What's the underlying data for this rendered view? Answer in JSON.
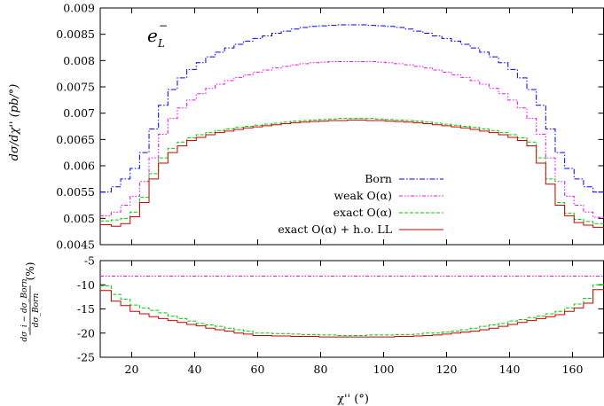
{
  "chart_data": [
    {
      "type": "line",
      "panel": "top",
      "title": "",
      "annotation": "e_L^-",
      "xlabel": "",
      "ylabel": "dσ/dχ'' (pb/°)",
      "xlim": [
        10,
        170
      ],
      "ylim": [
        0.0045,
        0.009
      ],
      "yticks": [
        "0.0045",
        "0.005",
        "0.0055",
        "0.006",
        "0.0065",
        "0.007",
        "0.0075",
        "0.008",
        "0.0085",
        "0.009"
      ],
      "legend_position": "center-right",
      "x": [
        12,
        15,
        18,
        21,
        24,
        27,
        30,
        33,
        36,
        39,
        42,
        45,
        48,
        51,
        54,
        57,
        60,
        63,
        66,
        69,
        72,
        75,
        78,
        81,
        84,
        87,
        90,
        93,
        96,
        99,
        102,
        105,
        108,
        111,
        114,
        117,
        120,
        123,
        126,
        129,
        132,
        135,
        138,
        141,
        144,
        147,
        150,
        153,
        156,
        159,
        162,
        165,
        168
      ],
      "series": [
        {
          "name": "Born",
          "color": "#0000ff",
          "dash": "dash-dot",
          "values": [
            0.0055,
            0.0056,
            0.00575,
            0.00595,
            0.00625,
            0.0067,
            0.00715,
            0.00745,
            0.00767,
            0.00783,
            0.00796,
            0.00807,
            0.00816,
            0.00824,
            0.00831,
            0.00837,
            0.00842,
            0.00847,
            0.00852,
            0.00856,
            0.0086,
            0.00863,
            0.00865,
            0.00866,
            0.00867,
            0.00868,
            0.00868,
            0.00868,
            0.00867,
            0.00866,
            0.00865,
            0.00863,
            0.0086,
            0.00856,
            0.00852,
            0.00847,
            0.00842,
            0.00837,
            0.00831,
            0.00824,
            0.00816,
            0.00807,
            0.00796,
            0.00783,
            0.00767,
            0.00745,
            0.00715,
            0.0067,
            0.00625,
            0.00595,
            0.00575,
            0.0056,
            0.0055
          ]
        },
        {
          "name": "weak O(α)",
          "color": "#ff00ff",
          "dash": "dash-dot-dot",
          "values": [
            0.00505,
            0.00512,
            0.00525,
            0.00542,
            0.0057,
            0.00615,
            0.0066,
            0.0069,
            0.0071,
            0.00725,
            0.00737,
            0.00747,
            0.00755,
            0.00762,
            0.00768,
            0.00773,
            0.00778,
            0.00782,
            0.00786,
            0.00789,
            0.00792,
            0.00794,
            0.00796,
            0.00797,
            0.00798,
            0.00798,
            0.00798,
            0.00798,
            0.00798,
            0.00797,
            0.00796,
            0.00794,
            0.00792,
            0.00789,
            0.00786,
            0.00782,
            0.00778,
            0.00773,
            0.00768,
            0.00762,
            0.00755,
            0.00747,
            0.00737,
            0.00725,
            0.0071,
            0.0069,
            0.0066,
            0.00615,
            0.0057,
            0.00542,
            0.00525,
            0.00512,
            0.00502
          ]
        },
        {
          "name": "exact O(α)",
          "color": "#00cc00",
          "dash": "dashed",
          "values": [
            0.00495,
            0.00497,
            0.005,
            0.00512,
            0.0054,
            0.00585,
            0.00615,
            0.00633,
            0.00645,
            0.00653,
            0.00659,
            0.00663,
            0.00667,
            0.0067,
            0.00673,
            0.00675,
            0.00677,
            0.00679,
            0.00681,
            0.00683,
            0.00685,
            0.00686,
            0.00687,
            0.00688,
            0.00689,
            0.0069,
            0.0069,
            0.0069,
            0.0069,
            0.00689,
            0.00688,
            0.00687,
            0.00686,
            0.00685,
            0.00683,
            0.00681,
            0.00679,
            0.00677,
            0.00675,
            0.00673,
            0.0067,
            0.00667,
            0.00663,
            0.00659,
            0.00653,
            0.00645,
            0.00615,
            0.00575,
            0.0053,
            0.0051,
            0.00498,
            0.00494,
            0.0049
          ]
        },
        {
          "name": "exact O(α) + h.o. LL",
          "color": "#cc0000",
          "dash": "solid",
          "values": [
            0.00488,
            0.00485,
            0.0049,
            0.00503,
            0.0053,
            0.00575,
            0.00605,
            0.00625,
            0.00638,
            0.00648,
            0.00654,
            0.00659,
            0.00663,
            0.00666,
            0.00669,
            0.00672,
            0.00674,
            0.00676,
            0.00678,
            0.0068,
            0.00682,
            0.00683,
            0.00684,
            0.00685,
            0.00686,
            0.00686,
            0.00687,
            0.00687,
            0.00686,
            0.00686,
            0.00685,
            0.00684,
            0.00683,
            0.00682,
            0.0068,
            0.00678,
            0.00676,
            0.00674,
            0.00672,
            0.00669,
            0.00666,
            0.00663,
            0.00659,
            0.00654,
            0.00648,
            0.00638,
            0.00605,
            0.00565,
            0.00525,
            0.00505,
            0.00492,
            0.00487,
            0.00483
          ]
        }
      ]
    },
    {
      "type": "line",
      "panel": "bottom",
      "xlabel": "χ'' (°)",
      "ylabel": "(dσ_i − dσ_Born) / dσ_Born (%)",
      "xlim": [
        10,
        170
      ],
      "ylim": [
        -25,
        -5
      ],
      "xticks": [
        "20",
        "40",
        "60",
        "80",
        "100",
        "120",
        "140",
        "160"
      ],
      "yticks": [
        "-25",
        "-20",
        "-15",
        "-10",
        "-5"
      ],
      "x": [
        12,
        15,
        18,
        21,
        24,
        27,
        30,
        33,
        36,
        39,
        42,
        45,
        48,
        51,
        54,
        57,
        60,
        63,
        66,
        69,
        72,
        75,
        78,
        81,
        84,
        87,
        90,
        93,
        96,
        99,
        102,
        105,
        108,
        111,
        114,
        117,
        120,
        123,
        126,
        129,
        132,
        135,
        138,
        141,
        144,
        147,
        150,
        153,
        156,
        159,
        162,
        165,
        168
      ],
      "series": [
        {
          "name": "weak O(α)",
          "color": "#ff00ff",
          "dash": "dash-dot-dot",
          "values": [
            -8.2,
            -8.2,
            -8.2,
            -8.2,
            -8.2,
            -8.2,
            -8.2,
            -8.2,
            -8.2,
            -8.2,
            -8.2,
            -8.2,
            -8.2,
            -8.2,
            -8.2,
            -8.2,
            -8.2,
            -8.2,
            -8.2,
            -8.2,
            -8.2,
            -8.2,
            -8.2,
            -8.2,
            -8.2,
            -8.2,
            -8.2,
            -8.2,
            -8.2,
            -8.2,
            -8.2,
            -8.2,
            -8.2,
            -8.2,
            -8.2,
            -8.2,
            -8.2,
            -8.2,
            -8.2,
            -8.2,
            -8.2,
            -8.2,
            -8.2,
            -8.2,
            -8.2,
            -8.2,
            -8.2,
            -8.2,
            -8.2,
            -8.2,
            -8.2,
            -8.2,
            -8.2
          ]
        },
        {
          "name": "exact O(α)",
          "color": "#00cc00",
          "dash": "dashed",
          "values": [
            -10.2,
            -12.0,
            -13.0,
            -14.2,
            -14.8,
            -15.3,
            -15.8,
            -16.5,
            -17.0,
            -17.5,
            -18.0,
            -18.3,
            -18.6,
            -19.0,
            -19.3,
            -19.6,
            -20.0,
            -20.0,
            -20.1,
            -20.1,
            -20.2,
            -20.3,
            -20.3,
            -20.4,
            -20.4,
            -20.5,
            -20.5,
            -20.5,
            -20.4,
            -20.4,
            -20.4,
            -20.3,
            -20.3,
            -20.2,
            -20.0,
            -20.0,
            -19.8,
            -19.6,
            -19.3,
            -19.0,
            -18.6,
            -18.3,
            -18.0,
            -17.5,
            -17.2,
            -16.8,
            -16.5,
            -16.0,
            -15.5,
            -14.8,
            -14.0,
            -12.8,
            -10.0
          ]
        },
        {
          "name": "exact O(α) + h.o. LL",
          "color": "#cc0000",
          "dash": "solid",
          "values": [
            -11.2,
            -13.4,
            -14.3,
            -15.5,
            -16.0,
            -16.6,
            -17.0,
            -17.4,
            -17.8,
            -18.2,
            -18.5,
            -19.0,
            -19.3,
            -19.6,
            -20.0,
            -20.2,
            -20.5,
            -20.5,
            -20.6,
            -20.6,
            -20.7,
            -20.7,
            -20.7,
            -20.8,
            -20.8,
            -20.8,
            -20.8,
            -20.8,
            -20.8,
            -20.8,
            -20.8,
            -20.7,
            -20.7,
            -20.6,
            -20.5,
            -20.4,
            -20.2,
            -20.0,
            -19.8,
            -19.6,
            -19.3,
            -19.0,
            -18.6,
            -18.2,
            -17.8,
            -17.4,
            -17.0,
            -16.6,
            -16.2,
            -15.5,
            -14.8,
            -13.8,
            -11.0
          ]
        }
      ]
    }
  ],
  "labels": {
    "annotation_base": "e",
    "annotation_sub": "L",
    "annotation_sup": "−",
    "top_ylabel": "dσ/dχ'' (pb/°)",
    "bottom_ylabel_num": "dσ_i − dσ_Born",
    "bottom_ylabel_den": "dσ_Born",
    "bottom_ylabel_unit": "(%)",
    "xlabel": "χ'' (°)"
  }
}
